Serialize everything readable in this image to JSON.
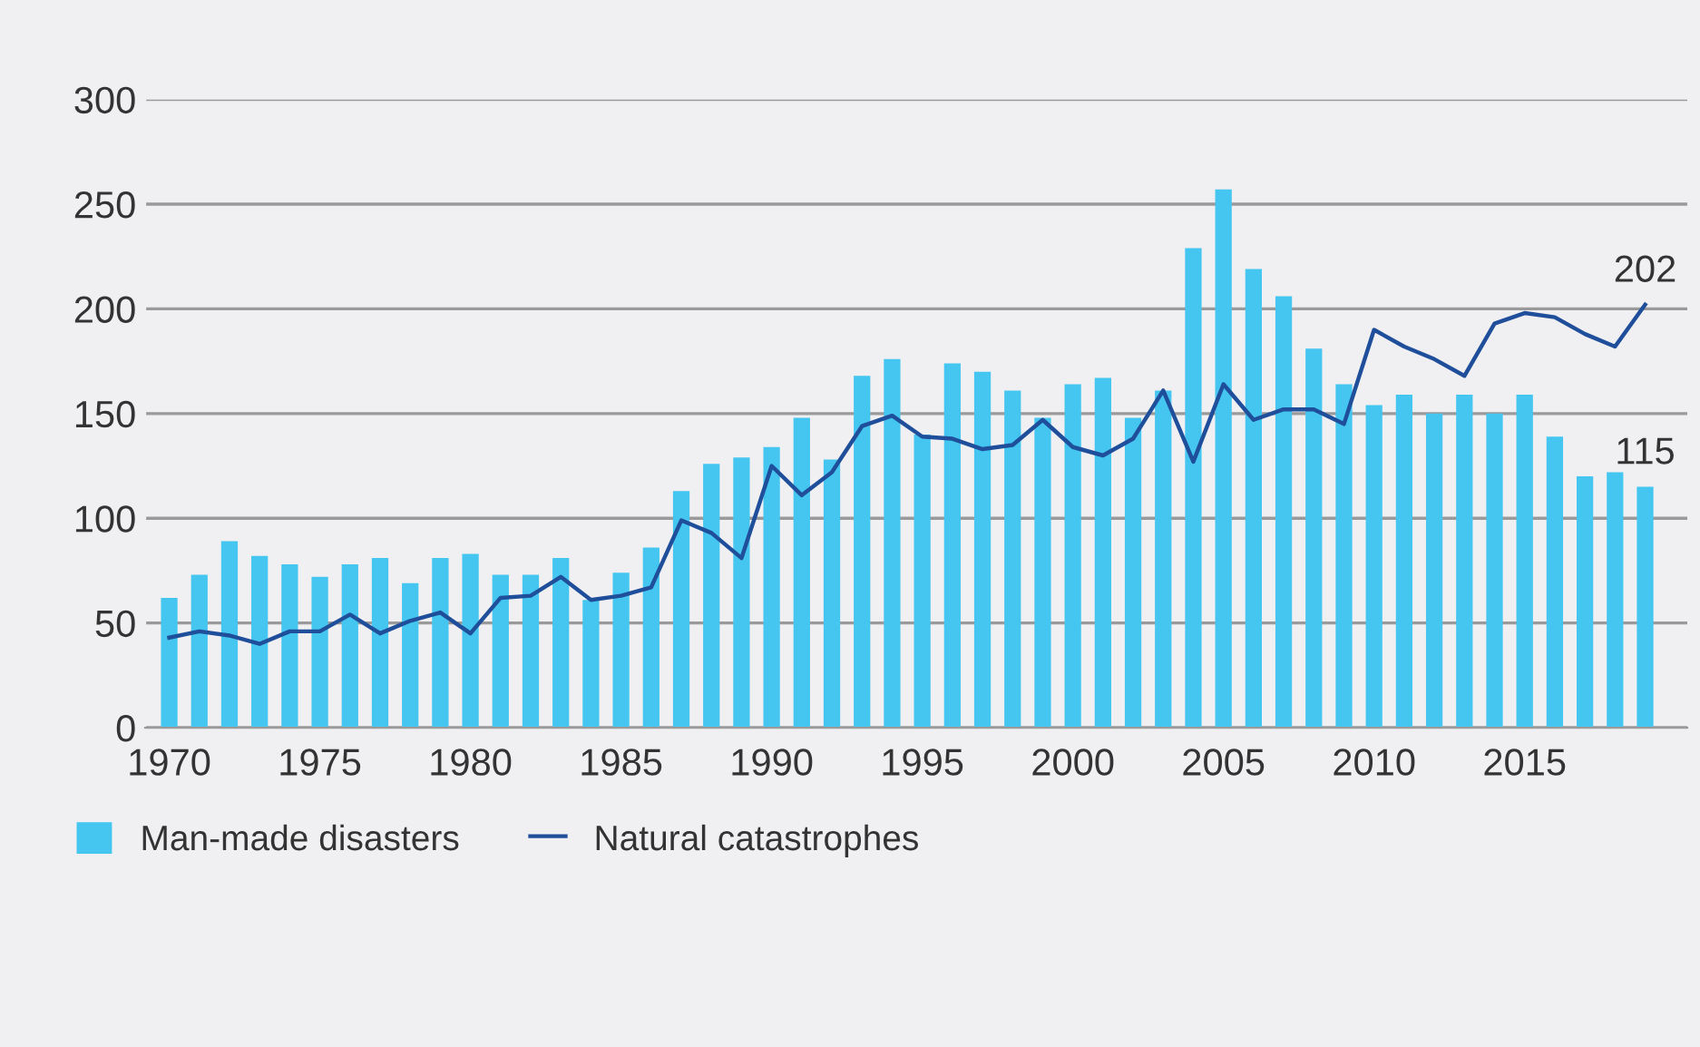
{
  "chart_data": {
    "type": "bar",
    "x": [
      1970,
      1971,
      1972,
      1973,
      1974,
      1975,
      1976,
      1977,
      1978,
      1979,
      1980,
      1981,
      1982,
      1983,
      1984,
      1985,
      1986,
      1987,
      1988,
      1989,
      1990,
      1991,
      1992,
      1993,
      1994,
      1995,
      1996,
      1997,
      1998,
      1999,
      2000,
      2001,
      2002,
      2003,
      2004,
      2005,
      2006,
      2007,
      2008,
      2009,
      2010,
      2011,
      2012,
      2013,
      2014,
      2015,
      2016,
      2017,
      2018,
      2019
    ],
    "series": [
      {
        "name": "Man-made disasters",
        "color": "#45c6f0",
        "values": [
          62,
          73,
          89,
          82,
          78,
          72,
          78,
          81,
          69,
          81,
          83,
          73,
          73,
          81,
          61,
          74,
          86,
          113,
          126,
          129,
          134,
          148,
          128,
          168,
          176,
          140,
          174,
          170,
          161,
          148,
          164,
          167,
          148,
          161,
          229,
          257,
          219,
          206,
          181,
          164,
          154,
          159,
          150,
          159,
          150,
          159,
          139,
          120,
          122,
          115
        ]
      },
      {
        "name": "Natural catastrophes",
        "type": "line",
        "color": "#1f4e9a",
        "values": [
          43,
          46,
          44,
          40,
          46,
          46,
          54,
          45,
          51,
          55,
          45,
          62,
          63,
          72,
          61,
          63,
          67,
          99,
          93,
          81,
          125,
          111,
          122,
          144,
          149,
          139,
          138,
          133,
          135,
          147,
          134,
          130,
          138,
          161,
          127,
          164,
          147,
          152,
          152,
          145,
          190,
          182,
          176,
          168,
          193,
          198,
          196,
          188,
          182,
          202
        ]
      }
    ],
    "xlim": [
      1969.2,
      2020.4
    ],
    "xticks": [
      1970,
      1975,
      1980,
      1985,
      1990,
      1995,
      2000,
      2005,
      2010,
      2015
    ],
    "ylim": [
      0,
      300
    ],
    "yticks": [
      0,
      50,
      100,
      150,
      200,
      250,
      300
    ],
    "grid": "y",
    "legend": "bottom left",
    "marker": "none",
    "line_style": "solid",
    "annotations": [
      {
        "text": "202",
        "x": 2019,
        "y": 202
      },
      {
        "text": "115",
        "x": 2019,
        "y": 115
      }
    ]
  }
}
